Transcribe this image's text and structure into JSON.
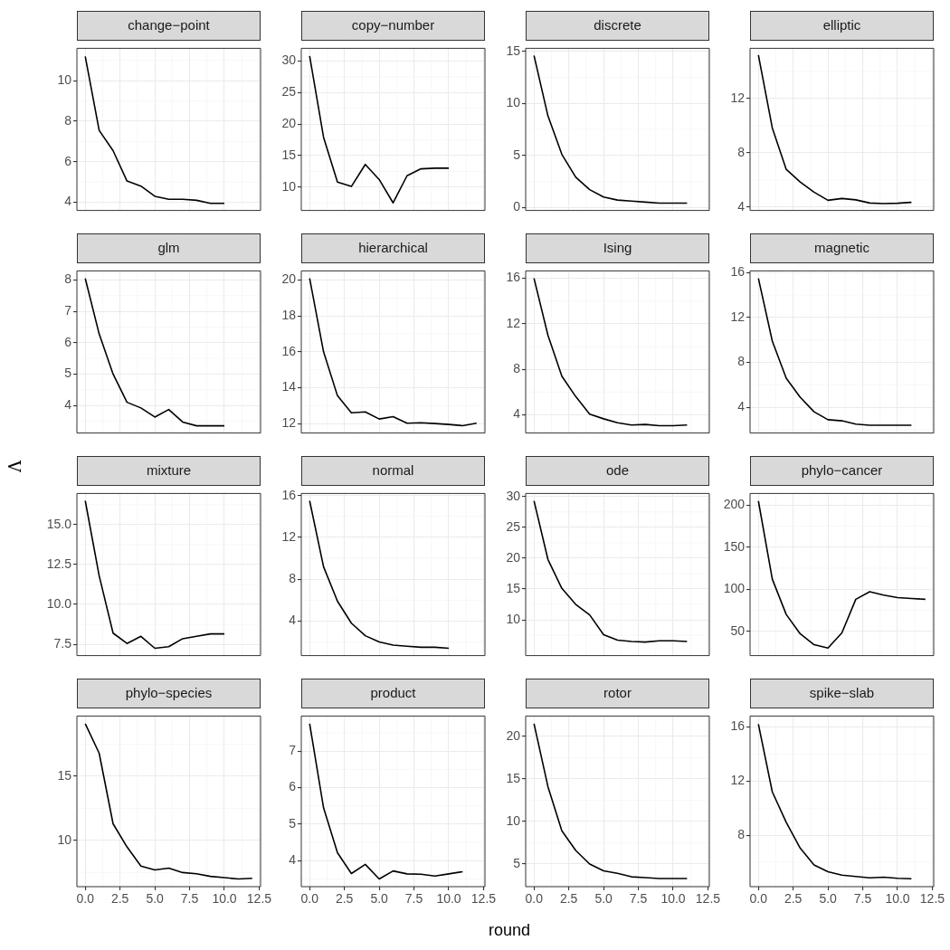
{
  "chart_data": [
    {
      "type": "line",
      "title": "change−point",
      "x": [
        0,
        1,
        2,
        3,
        4,
        5,
        6,
        7,
        8,
        9,
        10
      ],
      "values": [
        11.2,
        7.55,
        6.55,
        5.05,
        4.8,
        4.3,
        4.15,
        4.15,
        4.1,
        3.95,
        3.95
      ],
      "color": "#000000",
      "xlim": [
        -0.6,
        12.6
      ],
      "xticks": [
        0,
        2.5,
        5,
        7.5,
        10,
        12.5
      ],
      "ylim": [
        3.6,
        11.6
      ],
      "yticks": [
        4,
        6,
        8,
        10
      ],
      "grid": true,
      "tick_labels": "y"
    },
    {
      "type": "line",
      "title": "copy−number",
      "x": [
        0,
        1,
        2,
        3,
        4,
        5,
        6,
        7,
        8,
        9,
        10
      ],
      "values": [
        30.8,
        17.9,
        10.8,
        10.1,
        13.6,
        11.2,
        7.5,
        11.8,
        12.9,
        13.0,
        13.0
      ],
      "color": "#000000",
      "xlim": [
        -0.6,
        12.6
      ],
      "xticks": [
        0,
        2.5,
        5,
        7.5,
        10,
        12.5
      ],
      "ylim": [
        6.3,
        32.0
      ],
      "yticks": [
        10,
        15,
        20,
        25,
        30
      ],
      "grid": true,
      "tick_labels": "y"
    },
    {
      "type": "line",
      "title": "discrete",
      "x": [
        0,
        1,
        2,
        3,
        4,
        5,
        6,
        7,
        8,
        9,
        10,
        11
      ],
      "values": [
        14.6,
        8.8,
        5.1,
        2.9,
        1.7,
        1.0,
        0.7,
        0.6,
        0.5,
        0.4,
        0.4,
        0.4
      ],
      "color": "#000000",
      "xlim": [
        -0.6,
        12.6
      ],
      "xticks": [
        0,
        2.5,
        5,
        7.5,
        10,
        12.5
      ],
      "ylim": [
        -0.3,
        15.3
      ],
      "yticks": [
        0,
        5,
        10,
        15
      ],
      "grid": true,
      "tick_labels": "y"
    },
    {
      "type": "line",
      "title": "elliptic",
      "x": [
        0,
        1,
        2,
        3,
        4,
        5,
        6,
        7,
        8,
        9,
        10,
        11
      ],
      "values": [
        15.2,
        9.83,
        6.78,
        5.85,
        5.1,
        4.5,
        4.63,
        4.53,
        4.3,
        4.26,
        4.28,
        4.35
      ],
      "color": "#000000",
      "xlim": [
        -0.6,
        12.6
      ],
      "xticks": [
        0,
        2.5,
        5,
        7.5,
        10,
        12.5
      ],
      "ylim": [
        3.75,
        15.7
      ],
      "yticks": [
        4,
        8,
        12
      ],
      "grid": true,
      "tick_labels": "y"
    },
    {
      "type": "line",
      "title": "glm",
      "x": [
        0,
        1,
        2,
        3,
        4,
        5,
        6,
        7,
        8,
        9,
        10
      ],
      "values": [
        8.05,
        6.28,
        5.0,
        4.1,
        3.92,
        3.63,
        3.87,
        3.47,
        3.35,
        3.35,
        3.35
      ],
      "color": "#000000",
      "xlim": [
        -0.6,
        12.6
      ],
      "xticks": [
        0,
        2.5,
        5,
        7.5,
        10,
        12.5
      ],
      "ylim": [
        3.12,
        8.29
      ],
      "yticks": [
        4,
        5,
        6,
        7,
        8
      ],
      "grid": true,
      "tick_labels": "y"
    },
    {
      "type": "line",
      "title": "hierarchical",
      "x": [
        0,
        1,
        2,
        3,
        4,
        5,
        6,
        7,
        8,
        9,
        10,
        11,
        12
      ],
      "values": [
        20.1,
        16.0,
        13.55,
        12.6,
        12.65,
        12.25,
        12.38,
        12.02,
        12.04,
        12.0,
        11.95,
        11.88,
        12.02
      ],
      "color": "#000000",
      "xlim": [
        -0.6,
        12.6
      ],
      "xticks": [
        0,
        2.5,
        5,
        7.5,
        10,
        12.5
      ],
      "ylim": [
        11.47,
        20.51
      ],
      "yticks": [
        12,
        14,
        16,
        18,
        20
      ],
      "grid": true,
      "tick_labels": "y"
    },
    {
      "type": "line",
      "title": "Ising",
      "x": [
        0,
        1,
        2,
        3,
        4,
        5,
        6,
        7,
        8,
        9,
        10,
        11
      ],
      "values": [
        16.0,
        11.0,
        7.4,
        5.6,
        4.05,
        3.65,
        3.3,
        3.1,
        3.15,
        3.05,
        3.05,
        3.1
      ],
      "color": "#000000",
      "xlim": [
        -0.6,
        12.6
      ],
      "xticks": [
        0,
        2.5,
        5,
        7.5,
        10,
        12.5
      ],
      "ylim": [
        2.4,
        16.65
      ],
      "yticks": [
        4,
        8,
        12,
        16
      ],
      "grid": true,
      "tick_labels": "y"
    },
    {
      "type": "line",
      "title": "magnetic",
      "x": [
        0,
        1,
        2,
        3,
        4,
        5,
        6,
        7,
        8,
        9,
        10,
        11
      ],
      "values": [
        15.5,
        9.9,
        6.6,
        4.9,
        3.6,
        2.9,
        2.8,
        2.5,
        2.4,
        2.4,
        2.4,
        2.4
      ],
      "color": "#000000",
      "xlim": [
        -0.6,
        12.6
      ],
      "xticks": [
        0,
        2.5,
        5,
        7.5,
        10,
        12.5
      ],
      "ylim": [
        1.71,
        16.16
      ],
      "yticks": [
        4,
        8,
        12,
        16
      ],
      "grid": true,
      "tick_labels": "y"
    },
    {
      "type": "line",
      "title": "mixture",
      "ylabel": "Λ",
      "x": [
        0,
        1,
        2,
        3,
        4,
        5,
        6,
        7,
        8,
        9,
        10
      ],
      "values": [
        16.5,
        11.8,
        8.2,
        7.55,
        8.0,
        7.25,
        7.35,
        7.85,
        8.0,
        8.15,
        8.15
      ],
      "color": "#000000",
      "xlim": [
        -0.6,
        12.6
      ],
      "xticks": [
        0,
        2.5,
        5,
        7.5,
        10,
        12.5
      ],
      "ylim": [
        6.79,
        16.96
      ],
      "yticks": [
        {
          "value": 7.5,
          "label": "7.5"
        },
        {
          "value": 10,
          "label": "10.0"
        },
        {
          "value": 12.5,
          "label": "12.5"
        },
        {
          "value": 15,
          "label": "15.0"
        }
      ],
      "grid": true,
      "tick_labels": "y"
    },
    {
      "type": "line",
      "title": "normal",
      "x": [
        0,
        1,
        2,
        3,
        4,
        5,
        6,
        7,
        8,
        9,
        10
      ],
      "values": [
        15.5,
        9.2,
        5.9,
        3.8,
        2.6,
        2.0,
        1.7,
        1.6,
        1.5,
        1.5,
        1.4
      ],
      "color": "#000000",
      "xlim": [
        -0.6,
        12.6
      ],
      "xticks": [
        0,
        2.5,
        5,
        7.5,
        10,
        12.5
      ],
      "ylim": [
        0.7,
        16.2
      ],
      "yticks": [
        4,
        8,
        12,
        16
      ],
      "grid": true,
      "tick_labels": "y"
    },
    {
      "type": "line",
      "title": "ode",
      "x": [
        0,
        1,
        2,
        3,
        4,
        5,
        6,
        7,
        8,
        9,
        10,
        11
      ],
      "values": [
        29.3,
        19.8,
        15.1,
        12.5,
        10.8,
        7.6,
        6.7,
        6.5,
        6.4,
        6.6,
        6.6,
        6.5
      ],
      "color": "#000000",
      "xlim": [
        -0.6,
        12.6
      ],
      "xticks": [
        0,
        2.5,
        5,
        7.5,
        10,
        12.5
      ],
      "ylim": [
        4.2,
        30.5
      ],
      "yticks": [
        10,
        15,
        20,
        25,
        30
      ],
      "grid": true,
      "tick_labels": "y"
    },
    {
      "type": "line",
      "title": "phylo−cancer",
      "x": [
        0,
        1,
        2,
        3,
        4,
        5,
        6,
        7,
        8,
        9,
        10,
        11,
        12
      ],
      "values": [
        205,
        112,
        70,
        47,
        34,
        30,
        48,
        88,
        97,
        93,
        90,
        89,
        88
      ],
      "color": "#000000",
      "xlim": [
        -0.6,
        12.6
      ],
      "xticks": [
        0,
        2.5,
        5,
        7.5,
        10,
        12.5
      ],
      "ylim": [
        21,
        214
      ],
      "yticks": [
        50,
        100,
        150,
        200
      ],
      "grid": true,
      "tick_labels": "y"
    },
    {
      "type": "line",
      "title": "phylo−species",
      "x": [
        0,
        1,
        2,
        3,
        4,
        5,
        6,
        7,
        8,
        9,
        10,
        11,
        12
      ],
      "values": [
        19.1,
        16.8,
        11.3,
        9.5,
        8.0,
        7.7,
        7.85,
        7.5,
        7.4,
        7.2,
        7.1,
        7.0,
        7.05
      ],
      "color": "#000000",
      "xlim": [
        -0.6,
        12.6
      ],
      "xticks": [
        {
          "value": 0,
          "label": "0.0"
        },
        {
          "value": 2.5,
          "label": "2.5"
        },
        {
          "value": 5,
          "label": "5.0"
        },
        {
          "value": 7.5,
          "label": "7.5"
        },
        {
          "value": 10,
          "label": "10.0"
        },
        {
          "value": 12.5,
          "label": "12.5"
        }
      ],
      "ylim": [
        6.4,
        19.7
      ],
      "yticks": [
        10,
        15
      ],
      "grid": true
    },
    {
      "type": "line",
      "title": "product",
      "xlabel": "round",
      "x": [
        0,
        1,
        2,
        3,
        4,
        5,
        6,
        7,
        8,
        9,
        10,
        11
      ],
      "values": [
        7.75,
        5.45,
        4.22,
        3.65,
        3.9,
        3.5,
        3.72,
        3.64,
        3.63,
        3.58,
        3.64,
        3.7
      ],
      "color": "#000000",
      "xlim": [
        -0.6,
        12.6
      ],
      "xticks": [
        {
          "value": 0,
          "label": "0.0"
        },
        {
          "value": 2.5,
          "label": "2.5"
        },
        {
          "value": 5,
          "label": "5.0"
        },
        {
          "value": 7.5,
          "label": "7.5"
        },
        {
          "value": 10,
          "label": "10.0"
        },
        {
          "value": 12.5,
          "label": "12.5"
        }
      ],
      "ylim": [
        3.29,
        7.96
      ],
      "yticks": [
        4,
        5,
        6,
        7
      ],
      "grid": true
    },
    {
      "type": "line",
      "title": "rotor",
      "x": [
        0,
        1,
        2,
        3,
        4,
        5,
        6,
        7,
        8,
        9,
        10,
        11
      ],
      "values": [
        21.5,
        14.1,
        8.9,
        6.6,
        5.0,
        4.2,
        3.9,
        3.5,
        3.4,
        3.3,
        3.3,
        3.3
      ],
      "color": "#000000",
      "xlim": [
        -0.6,
        12.6
      ],
      "xticks": [
        {
          "value": 0,
          "label": "0.0"
        },
        {
          "value": 2.5,
          "label": "2.5"
        },
        {
          "value": 5,
          "label": "5.0"
        },
        {
          "value": 7.5,
          "label": "7.5"
        },
        {
          "value": 10,
          "label": "10.0"
        },
        {
          "value": 12.5,
          "label": "12.5"
        }
      ],
      "ylim": [
        2.34,
        22.4
      ],
      "yticks": [
        5,
        10,
        15,
        20
      ],
      "grid": true
    },
    {
      "type": "line",
      "title": "spike−slab",
      "x": [
        0,
        1,
        2,
        3,
        4,
        5,
        6,
        7,
        8,
        9,
        10,
        11
      ],
      "values": [
        16.2,
        11.2,
        8.95,
        7.05,
        5.8,
        5.3,
        5.05,
        4.95,
        4.85,
        4.9,
        4.82,
        4.78
      ],
      "color": "#000000",
      "xlim": [
        -0.6,
        12.6
      ],
      "xticks": [
        {
          "value": 0,
          "label": "0.0"
        },
        {
          "value": 2.5,
          "label": "2.5"
        },
        {
          "value": 5,
          "label": "5.0"
        },
        {
          "value": 7.5,
          "label": "7.5"
        },
        {
          "value": 10,
          "label": "10.0"
        },
        {
          "value": 12.5,
          "label": "12.5"
        }
      ],
      "ylim": [
        4.2,
        16.8
      ],
      "yticks": [
        8,
        12,
        16
      ],
      "grid": true
    }
  ]
}
